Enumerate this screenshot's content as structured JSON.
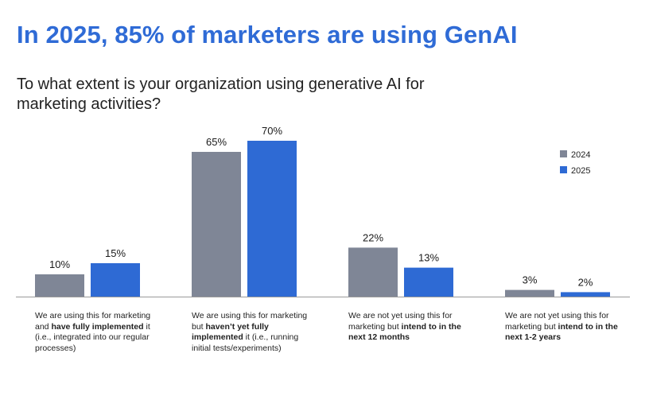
{
  "header": {
    "title": "In 2025, 85% of marketers are using GenAI",
    "subtitle": "To what extent is your organization using generative AI for marketing activities?"
  },
  "chart_data": {
    "type": "bar",
    "categories": [
      {
        "pre": "We are using this for marketing and ",
        "bold": "have fully implemented",
        "post": " it (i.e., integrated into our regular processes)"
      },
      {
        "pre": "We are using this for marketing but ",
        "bold": "haven’t yet fully implemented",
        "post": " it (i.e., running initial tests/experiments)"
      },
      {
        "pre": "We are not yet using this for marketing but ",
        "bold": "intend to in the next 12 months",
        "post": ""
      },
      {
        "pre": "We are not yet using this for marketing but ",
        "bold": "intend to in the next 1-2 years",
        "post": ""
      }
    ],
    "series": [
      {
        "name": "2024",
        "color": "#7f8696",
        "values": [
          10,
          65,
          22,
          3
        ],
        "labels": [
          "10%",
          "65%",
          "22%",
          "3%"
        ]
      },
      {
        "name": "2025",
        "color": "#2e6ad4",
        "values": [
          15,
          70,
          13,
          2
        ],
        "labels": [
          "15%",
          "70%",
          "13%",
          "2%"
        ]
      }
    ],
    "ylim": [
      0,
      70
    ],
    "legend_position": "top-right"
  }
}
